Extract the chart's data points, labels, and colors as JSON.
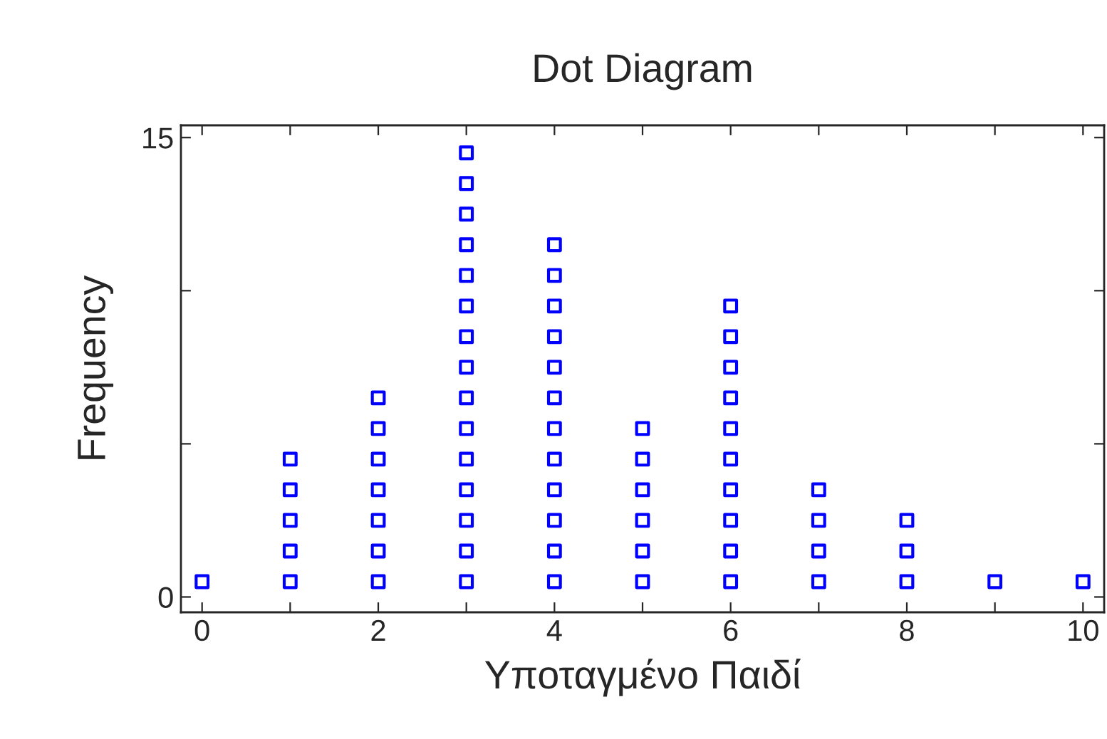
{
  "chart_data": {
    "type": "scatter",
    "title": "Dot Diagram",
    "xlabel": "Υποταγμένο Παιδί",
    "ylabel": "Frequency",
    "marker": "square",
    "grid": false,
    "legend": false,
    "series": [
      {
        "color": "#0000ff",
        "x": [
          0,
          1,
          1,
          1,
          1,
          1,
          2,
          2,
          2,
          2,
          2,
          2,
          2,
          3,
          3,
          3,
          3,
          3,
          3,
          3,
          3,
          3,
          3,
          3,
          3,
          3,
          3,
          3,
          4,
          4,
          4,
          4,
          4,
          4,
          4,
          4,
          4,
          4,
          4,
          4,
          5,
          5,
          5,
          5,
          5,
          5,
          6,
          6,
          6,
          6,
          6,
          6,
          6,
          6,
          6,
          6,
          7,
          7,
          7,
          7,
          8,
          8,
          8,
          9,
          10
        ],
        "values": [
          0.5,
          0.5,
          1.5,
          2.5,
          3.5,
          4.5,
          0.5,
          1.5,
          2.5,
          3.5,
          4.5,
          5.5,
          6.5,
          0.5,
          1.5,
          2.5,
          3.5,
          4.5,
          5.5,
          6.5,
          7.5,
          8.5,
          9.5,
          10.5,
          11.5,
          12.5,
          13.5,
          14.5,
          0.5,
          1.5,
          2.5,
          3.5,
          4.5,
          5.5,
          6.5,
          7.5,
          8.5,
          9.5,
          10.5,
          11.5,
          0.5,
          1.5,
          2.5,
          3.5,
          4.5,
          5.5,
          0.5,
          1.5,
          2.5,
          3.5,
          4.5,
          5.5,
          6.5,
          7.5,
          8.5,
          9.5,
          0.5,
          1.5,
          2.5,
          3.5,
          0.5,
          1.5,
          2.5,
          0.5,
          0.5
        ]
      }
    ],
    "xlim": [
      -0.24,
      10.24
    ],
    "ylim": [
      -0.5,
      15.4
    ],
    "xticks": [
      0,
      {
        "value": 1,
        "label": null
      },
      2,
      {
        "value": 3,
        "label": null
      },
      4,
      {
        "value": 5,
        "label": null
      },
      6,
      {
        "value": 7,
        "label": null
      },
      8,
      {
        "value": 9,
        "label": null
      },
      10
    ],
    "yticks": [
      0,
      {
        "value": 5,
        "label": null
      },
      {
        "value": 10,
        "label": null
      },
      15
    ]
  }
}
